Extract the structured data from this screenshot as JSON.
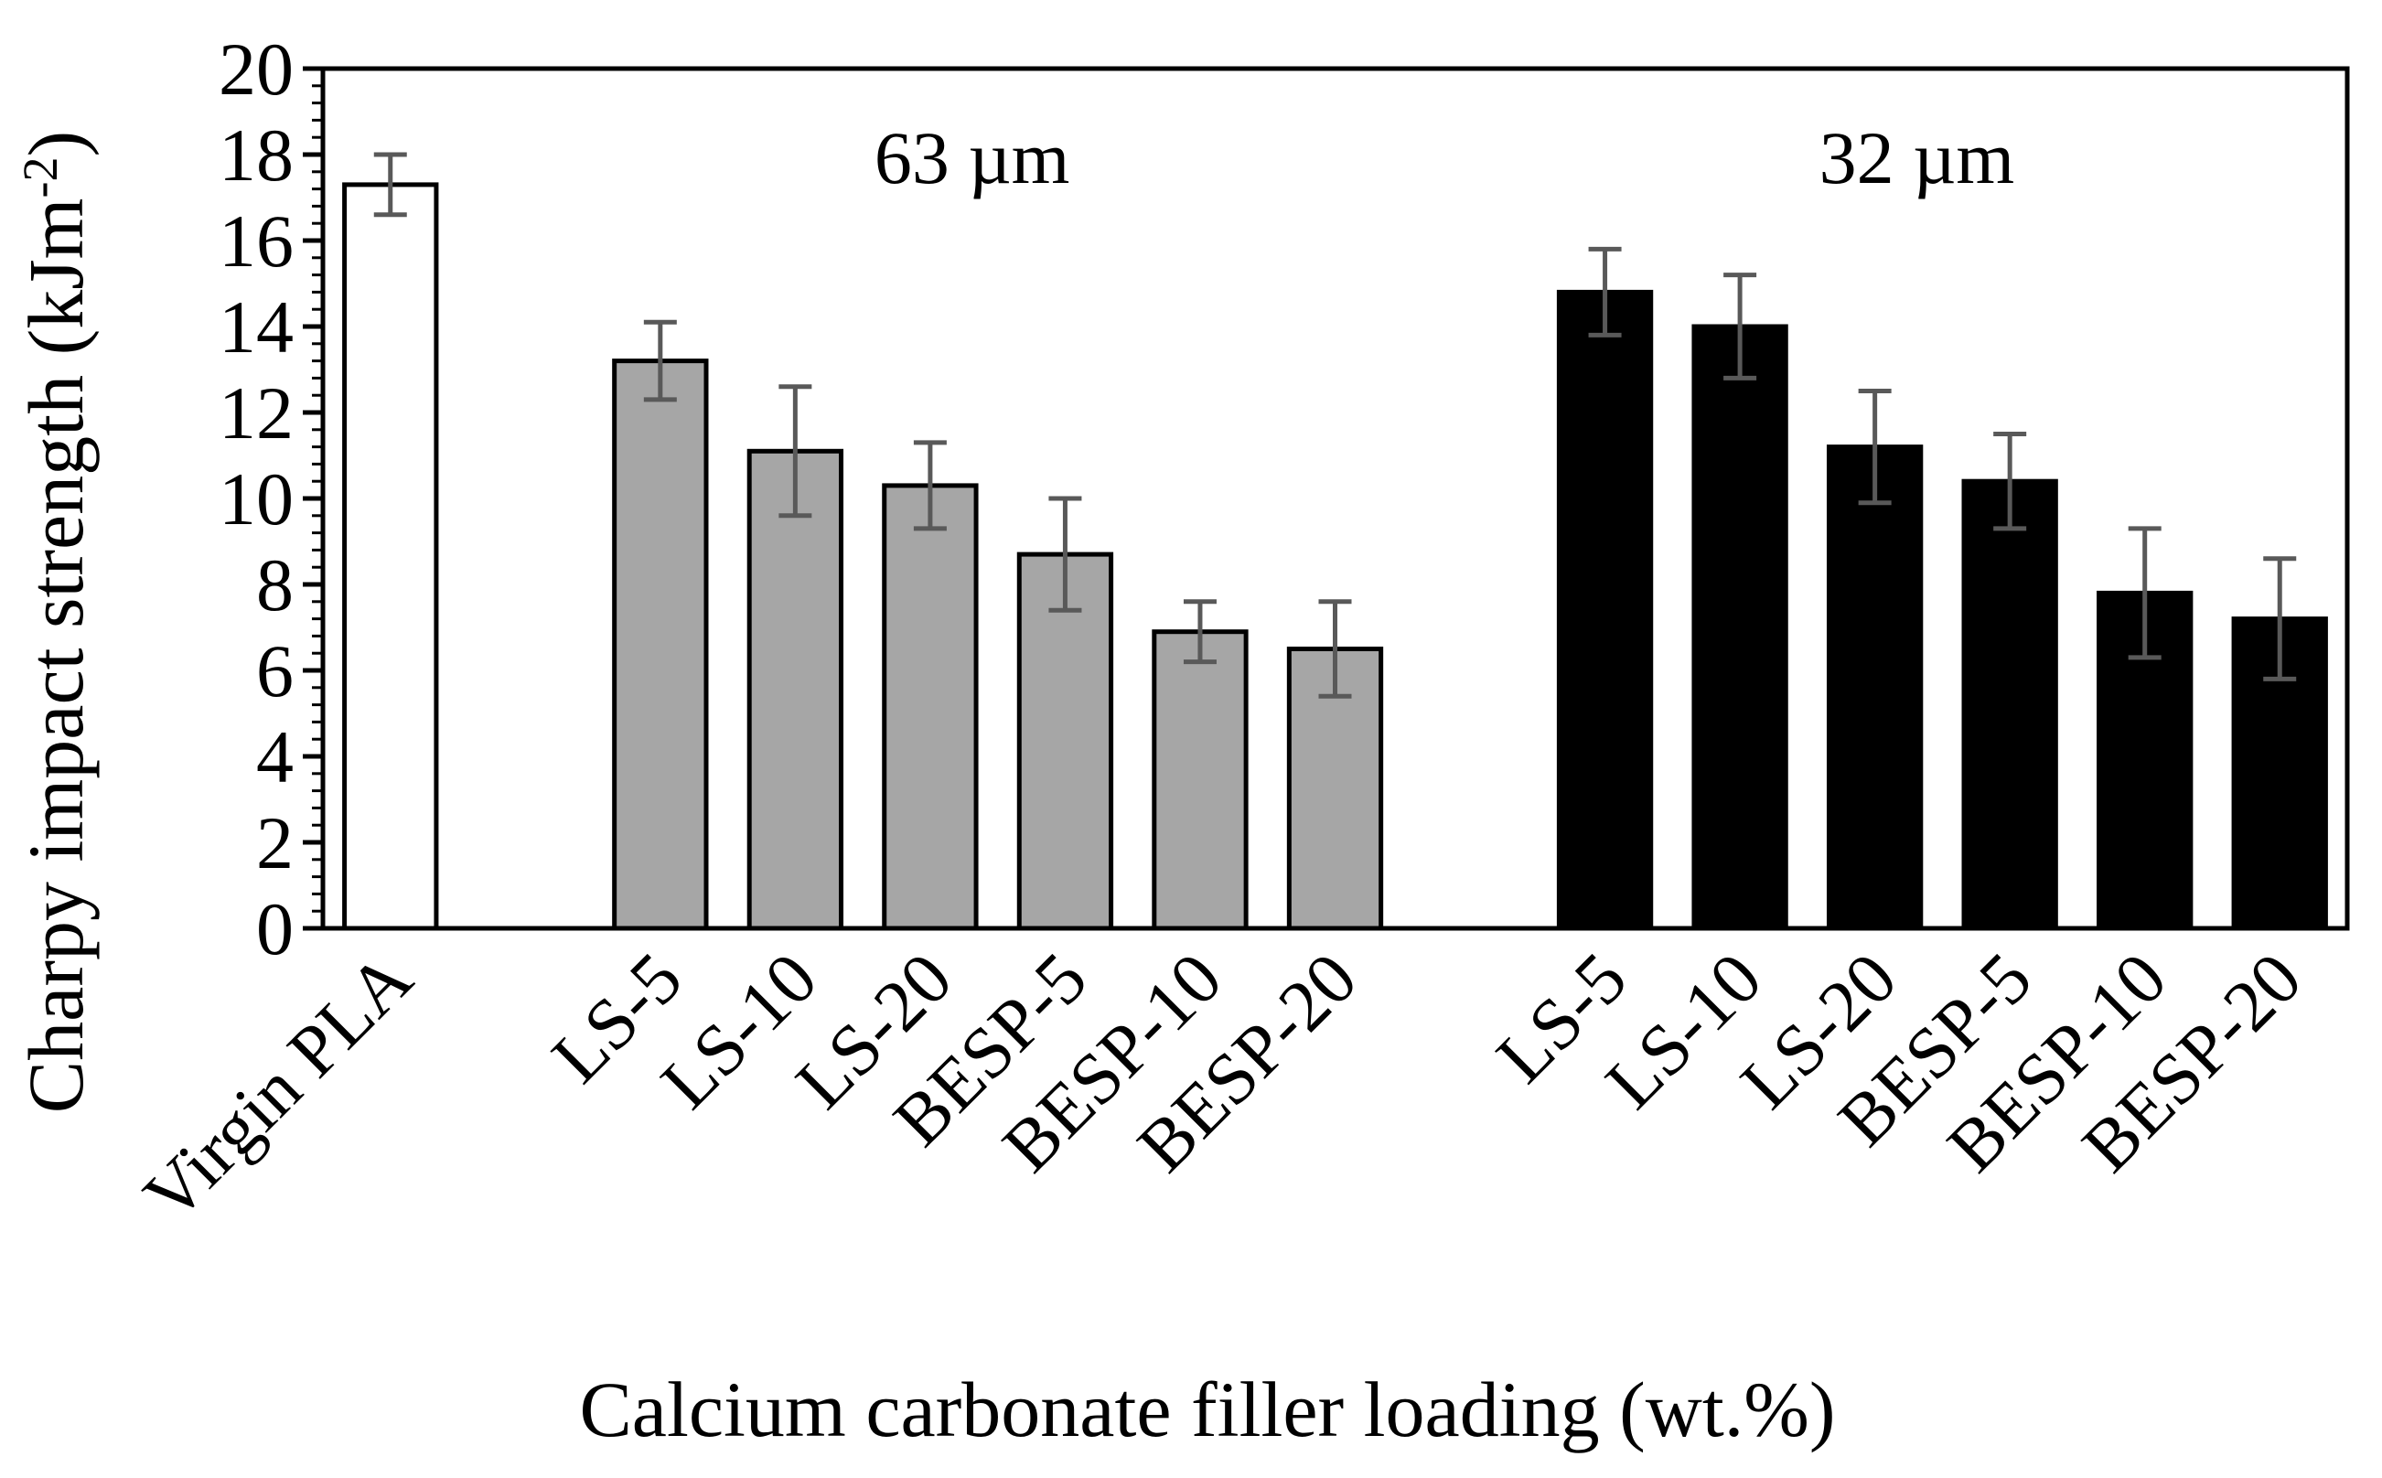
{
  "chart_data": {
    "type": "bar",
    "title": "",
    "xlabel": "Calcium carbonate filler loading (wt.%)",
    "ylabel": "Charpy impact strength (kJm",
    "ylabel_superscript": "-2",
    "ylabel_close": ")",
    "ylim": [
      0,
      20
    ],
    "yticks": [
      "0",
      "2",
      "4",
      "6",
      "8",
      "10",
      "12",
      "14",
      "16",
      "18",
      "20"
    ],
    "grid": false,
    "legend": "none",
    "annotations": [
      {
        "text": "63 µm",
        "group": "63"
      },
      {
        "text": "32 µm",
        "group": "32"
      }
    ],
    "categories": [
      "Virgin PLA",
      "",
      "LS-5",
      "LS-10",
      "LS-20",
      "BESP-5",
      "BESP-10",
      "BESP-20",
      "",
      "LS-5",
      "LS-10",
      "LS-20",
      "BESP-5",
      "BESP-10",
      "BESP-20"
    ],
    "series": [
      {
        "name": "Virgin PLA",
        "color": "#ffffff",
        "values": [
          17.3,
          null,
          null,
          null,
          null,
          null,
          null,
          null,
          null,
          null,
          null,
          null,
          null,
          null,
          null
        ],
        "errors": [
          0.7,
          null,
          null,
          null,
          null,
          null,
          null,
          null,
          null,
          null,
          null,
          null,
          null,
          null,
          null
        ]
      },
      {
        "name": "63 µm",
        "color": "#a6a6a6",
        "values": [
          null,
          null,
          13.2,
          11.1,
          10.3,
          8.7,
          6.9,
          6.5,
          null,
          null,
          null,
          null,
          null,
          null,
          null
        ],
        "errors": [
          null,
          null,
          0.9,
          1.5,
          1.0,
          1.3,
          0.7,
          1.1,
          null,
          null,
          null,
          null,
          null,
          null,
          null
        ]
      },
      {
        "name": "32 µm",
        "color": "#000000",
        "values": [
          null,
          null,
          null,
          null,
          null,
          null,
          null,
          null,
          null,
          14.8,
          14.0,
          11.2,
          10.4,
          7.8,
          7.2
        ],
        "errors": [
          null,
          null,
          null,
          null,
          null,
          null,
          null,
          null,
          null,
          1.0,
          1.2,
          1.3,
          1.1,
          1.5,
          1.4
        ]
      }
    ]
  }
}
